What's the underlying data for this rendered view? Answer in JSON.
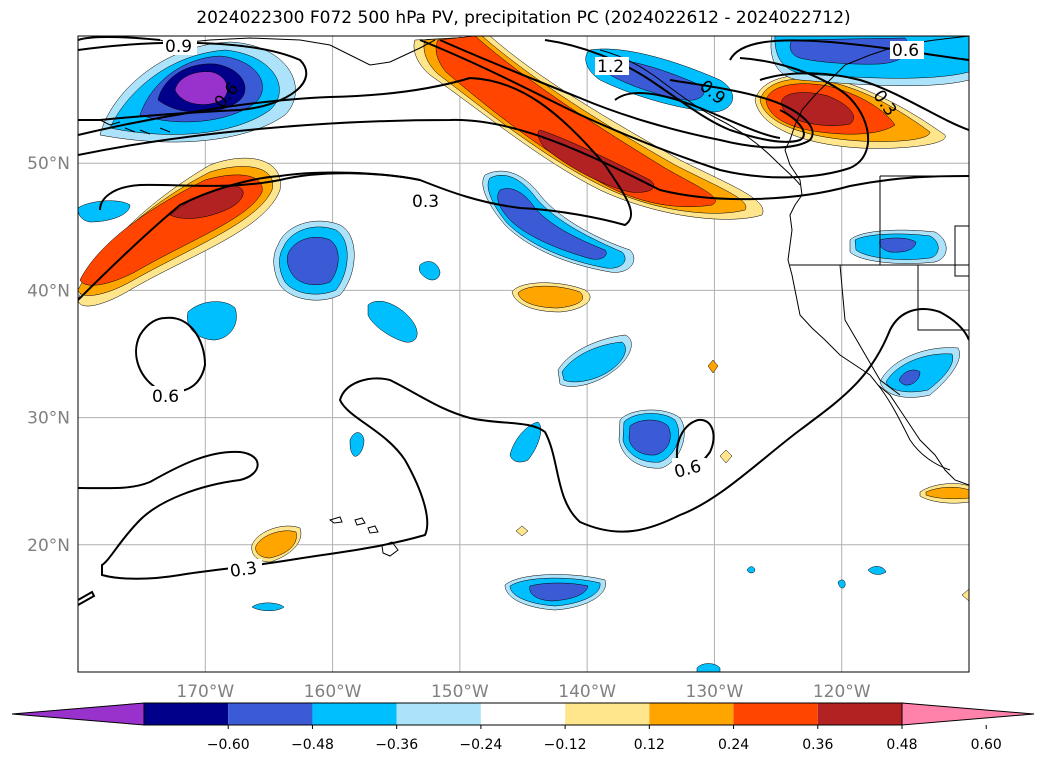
{
  "title": "2024022300 F072 500 hPa PV, precipitation PC (2024022612 - 2024022712)",
  "map": {
    "projection": "PlateCarree",
    "lon_range": [
      -180,
      -110
    ],
    "lat_range": [
      10,
      60
    ],
    "gridlines": true,
    "lon_ticks": [
      {
        "lon": -170,
        "label": "170°W"
      },
      {
        "lon": -160,
        "label": "160°W"
      },
      {
        "lon": -150,
        "label": "150°W"
      },
      {
        "lon": -140,
        "label": "140°W"
      },
      {
        "lon": -130,
        "label": "130°W"
      },
      {
        "lon": -120,
        "label": "120°W"
      }
    ],
    "lat_ticks": [
      {
        "lat": 20,
        "label": "20°N"
      },
      {
        "lat": 30,
        "label": "30°N"
      },
      {
        "lat": 40,
        "label": "40°N"
      },
      {
        "lat": 50,
        "label": "50°N"
      }
    ],
    "contour_labels": [
      "0.9",
      "0.6",
      "1.2",
      "0.9",
      "0.3",
      "0.3",
      "0.6",
      "0.6",
      "0.3",
      "0.6"
    ]
  },
  "colorbar": {
    "orientation": "horizontal",
    "extend": "both",
    "colors": [
      "#9932cc",
      "#00008b",
      "#3b5bd6",
      "#00bfff",
      "#ade3fa",
      "#ffffff",
      "#ffe68c",
      "#ffa500",
      "#ff4500",
      "#b22222",
      "#ff82ab"
    ],
    "tick_labels": [
      "−0.60",
      "−0.48",
      "−0.36",
      "−0.24",
      "−0.12",
      "0.12",
      "0.24",
      "0.36",
      "0.48",
      "0.60"
    ]
  }
}
